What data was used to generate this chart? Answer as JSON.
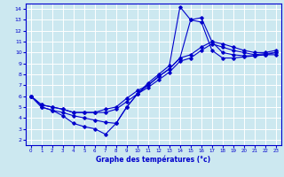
{
  "xlabel": "Graphe des températures (°c)",
  "background_color": "#cce8f0",
  "grid_color": "#ffffff",
  "line_color": "#0000cc",
  "marker": "D",
  "marker_size": 1.8,
  "linewidth": 0.8,
  "xlim": [
    -0.5,
    23.5
  ],
  "ylim": [
    1.5,
    14.5
  ],
  "xticks": [
    0,
    1,
    2,
    3,
    4,
    5,
    6,
    7,
    8,
    9,
    10,
    11,
    12,
    13,
    14,
    15,
    16,
    17,
    18,
    19,
    20,
    21,
    22,
    23
  ],
  "yticks": [
    2,
    3,
    4,
    5,
    6,
    7,
    8,
    9,
    10,
    11,
    12,
    13,
    14
  ],
  "series": [
    {
      "x": [
        0,
        1,
        2,
        3,
        4,
        5,
        6,
        7,
        8,
        9,
        10,
        11,
        12,
        13,
        14,
        15,
        16,
        17,
        18,
        19,
        20,
        21,
        22,
        23
      ],
      "y": [
        6.0,
        5.0,
        4.7,
        4.2,
        3.5,
        3.2,
        3.0,
        2.5,
        3.5,
        5.0,
        6.2,
        7.2,
        8.0,
        8.8,
        14.2,
        13.0,
        12.8,
        10.2,
        9.5,
        9.5,
        9.6,
        9.7,
        9.8,
        9.8
      ]
    },
    {
      "x": [
        0,
        1,
        2,
        3,
        4,
        5,
        6,
        7,
        8,
        9,
        10,
        11,
        12,
        13,
        14,
        15,
        16,
        17,
        18,
        19,
        20,
        21,
        22,
        23
      ],
      "y": [
        6.0,
        5.0,
        4.7,
        4.5,
        4.2,
        4.0,
        3.8,
        3.6,
        3.5,
        5.0,
        6.2,
        7.0,
        7.8,
        8.5,
        9.5,
        13.0,
        13.2,
        11.0,
        10.0,
        9.8,
        9.7,
        9.7,
        9.8,
        10.0
      ]
    },
    {
      "x": [
        0,
        1,
        2,
        3,
        4,
        5,
        6,
        7,
        8,
        9,
        10,
        11,
        12,
        13,
        14,
        15,
        16,
        17,
        18,
        19,
        20,
        21,
        22,
        23
      ],
      "y": [
        6.0,
        5.2,
        5.0,
        4.8,
        4.5,
        4.5,
        4.5,
        4.5,
        4.8,
        5.5,
        6.2,
        6.8,
        7.5,
        8.2,
        9.2,
        9.5,
        10.2,
        10.8,
        10.5,
        10.2,
        10.0,
        9.8,
        9.9,
        10.0
      ]
    },
    {
      "x": [
        0,
        1,
        2,
        3,
        4,
        5,
        6,
        7,
        8,
        9,
        10,
        11,
        12,
        13,
        14,
        15,
        16,
        17,
        18,
        19,
        20,
        21,
        22,
        23
      ],
      "y": [
        6.0,
        5.2,
        5.0,
        4.8,
        4.5,
        4.5,
        4.5,
        4.8,
        5.0,
        5.8,
        6.5,
        7.0,
        7.8,
        8.5,
        9.5,
        9.8,
        10.5,
        11.0,
        10.8,
        10.5,
        10.2,
        10.0,
        10.0,
        10.2
      ]
    }
  ]
}
